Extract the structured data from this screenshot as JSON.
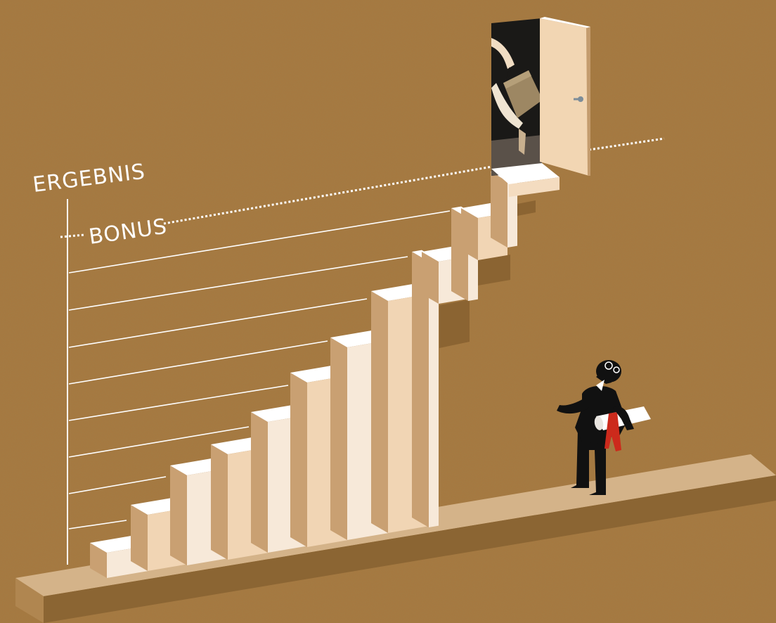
{
  "labels": {
    "axis": "ERGEBNIS",
    "bonus": "BONUS"
  },
  "colors": {
    "background": "#a5783f",
    "step_front_light": "#f7e9d9",
    "step_front_mid": "#f1d5b4",
    "step_top": "#ffffff",
    "step_side": "#c9a072",
    "ledge_top": "#d5b48a",
    "ledge_front": "#8a6431",
    "line": "#ffffff",
    "figure": "#111111",
    "ribbon": "#cc2a1c",
    "door": "#f2d6b3"
  },
  "figures": {
    "man": "man-with-rolled-document",
    "hand": "hand-holding-briefcase"
  }
}
